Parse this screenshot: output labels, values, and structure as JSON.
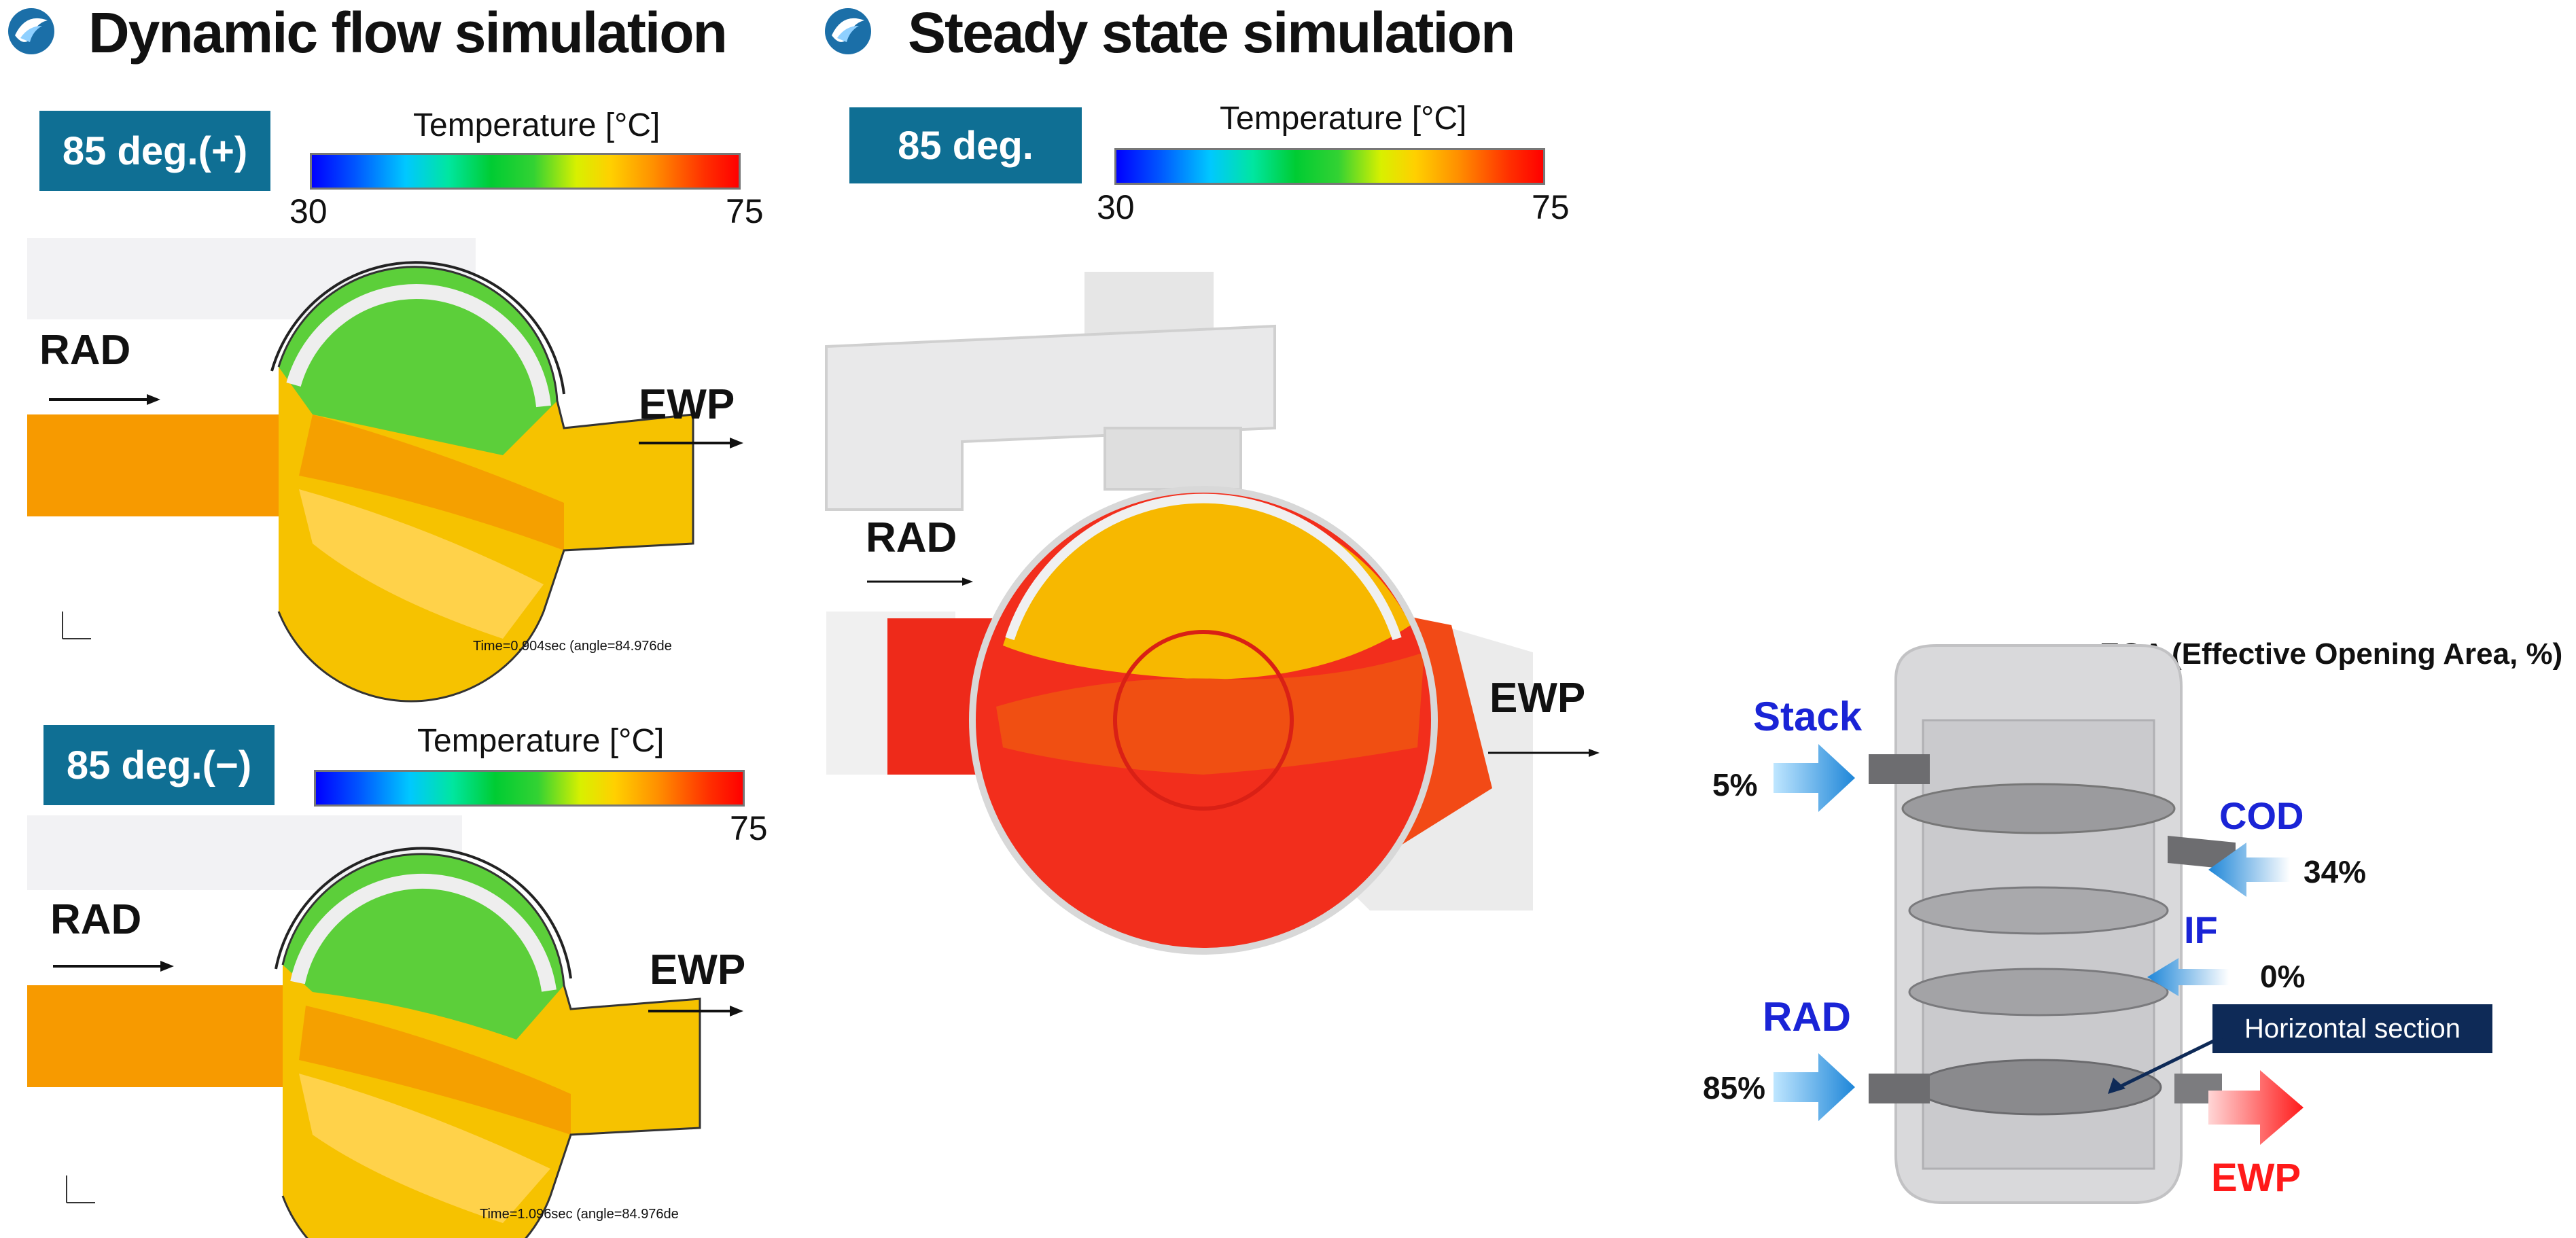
{
  "headings": {
    "dynamic": "Dynamic flow simulation",
    "steady": "Steady state simulation"
  },
  "colorbar": {
    "title": "Temperature [°C]",
    "min": "30",
    "max": "75"
  },
  "panels": {
    "top_left": {
      "badge": "85 deg.(+)",
      "inlet": "RAD",
      "outlet": "EWP",
      "time_text": "Time=0.904sec (angle=84.976de"
    },
    "bottom_left": {
      "badge": "85 deg.(−)",
      "inlet": "RAD",
      "outlet": "EWP",
      "time_text": "Time=1.096sec (angle=84.976de"
    },
    "steady": {
      "badge": "85 deg.",
      "inlet": "RAD",
      "outlet": "EWP"
    }
  },
  "eoa": {
    "title": "EOA (Effective Opening Area, %)",
    "ports": [
      {
        "name": "Stack",
        "value": "5%"
      },
      {
        "name": "COD",
        "value": "34%"
      },
      {
        "name": "IF",
        "value": "0%"
      },
      {
        "name": "RAD",
        "value": "85%"
      }
    ],
    "outlet": "EWP",
    "section_label": "Horizontal section"
  },
  "colors": {
    "badge": "#0f6f94",
    "port_label": "#1a24d6",
    "outlet": "#ff1a1a",
    "section_box": "#0e2a57"
  }
}
